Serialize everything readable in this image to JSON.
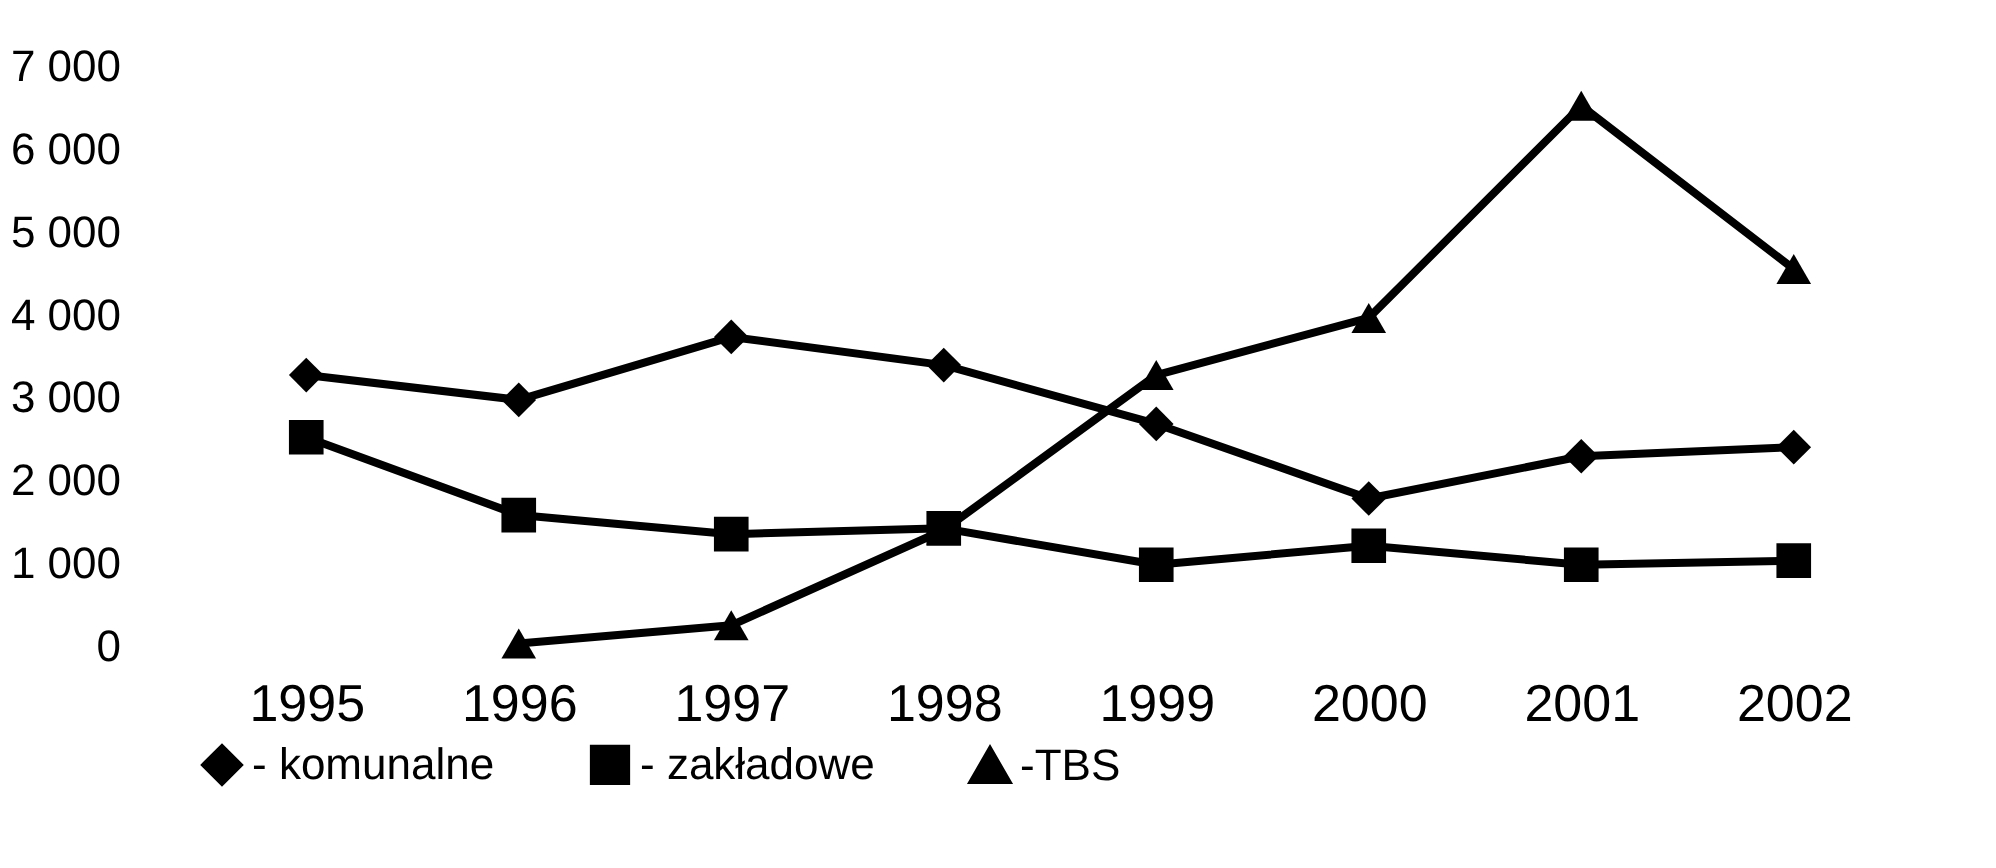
{
  "chart_data": {
    "type": "line",
    "categories": [
      "1995",
      "1996",
      "1997",
      "1998",
      "1999",
      "2000",
      "2001",
      "2002"
    ],
    "series": [
      {
        "name": "- komunalne",
        "color": "#000000",
        "marker": "diamond",
        "values": [
          3270,
          2970,
          3730,
          3390,
          2680,
          1780,
          2290,
          2400
        ]
      },
      {
        "name": "- zakładowe",
        "color": "#000000",
        "marker": "square",
        "values": [
          2520,
          1580,
          1350,
          1420,
          980,
          1210,
          980,
          1030
        ]
      },
      {
        "name": "-TBS",
        "color": "#000000",
        "marker": "triangle",
        "values": [
          null,
          30,
          250,
          1400,
          3270,
          3960,
          6520,
          4550
        ]
      }
    ],
    "ylim": [
      0,
      7000
    ],
    "yticks": [
      {
        "value": 0,
        "label": "0"
      },
      {
        "value": 1000,
        "label": "1 000"
      },
      {
        "value": 2000,
        "label": "2 000"
      },
      {
        "value": 3000,
        "label": "3 000"
      },
      {
        "value": 4000,
        "label": "4 000"
      },
      {
        "value": 5000,
        "label": "5 000"
      },
      {
        "value": 6000,
        "label": "6 000"
      },
      {
        "value": 7000,
        "label": "7 000"
      }
    ],
    "grid": false,
    "legend": "bottom"
  }
}
